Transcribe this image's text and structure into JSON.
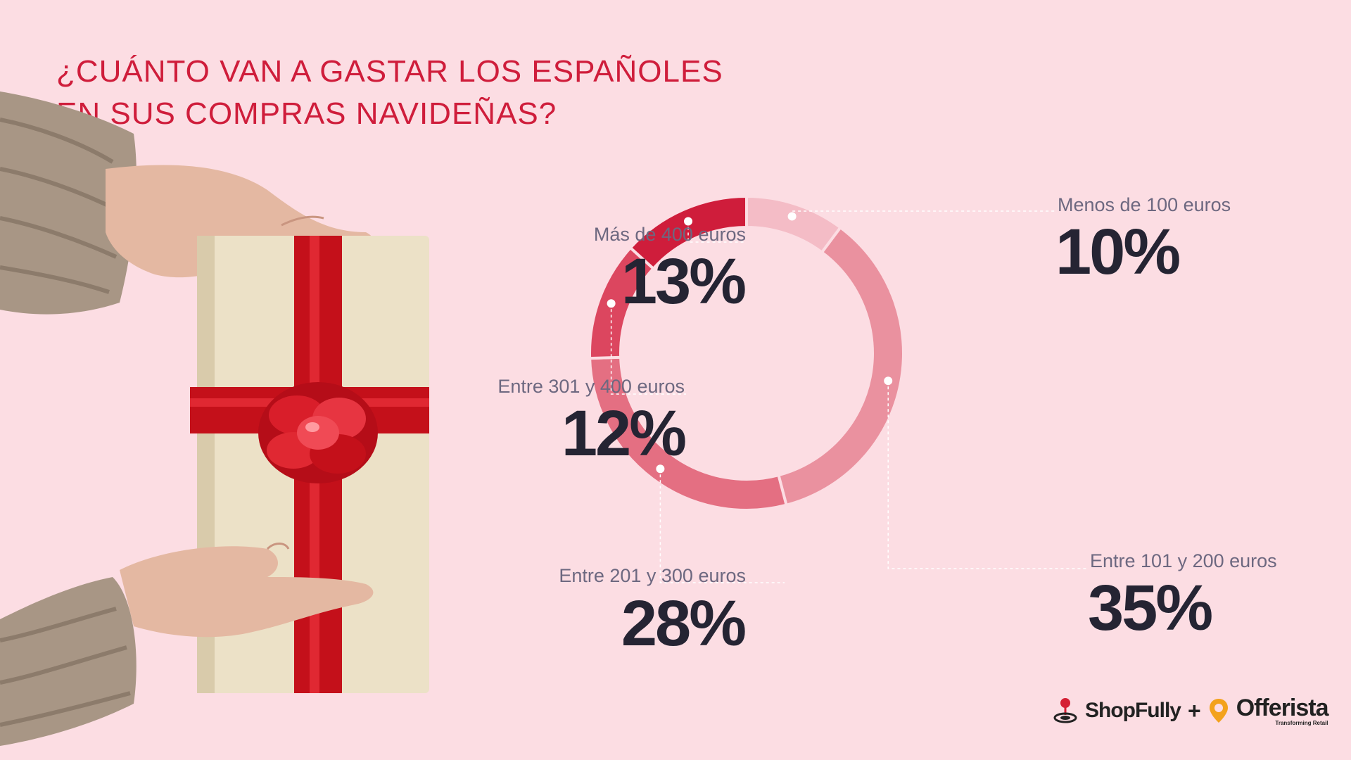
{
  "title": {
    "line1": "¿CUÁNTO VAN A GASTAR LOS ESPAÑOLES",
    "line2": "EN SUS COMPRAS NAVIDEÑAS?"
  },
  "chart_data": {
    "type": "pie",
    "title": "¿CUÁNTO VAN A GASTAR LOS ESPAÑOLES EN SUS COMPRAS NAVIDEÑAS?",
    "categories": [
      "Menos de 100 euros",
      "Entre 101 y 200 euros",
      "Entre 201 y 300 euros",
      "Entre 301 y 400 euros",
      "Más de 400 euros"
    ],
    "values": [
      10,
      35,
      28,
      12,
      13
    ],
    "value_labels": [
      "10%",
      "35%",
      "28%",
      "12%",
      "13%"
    ],
    "colors": [
      "#f4bcc6",
      "#ea919f",
      "#e46f82",
      "#dc465f",
      "#cf1d3b"
    ],
    "donut": true
  },
  "photo": {
    "icon": "gift-box-with-red-ribbon-held-by-hands"
  },
  "footer": {
    "brand1": "ShopFully",
    "plus": "+",
    "brand2": "Offerista",
    "tagline": "Transforming Retail",
    "brand1_icon": "shopfully-logo-icon",
    "brand2_icon": "offerista-pin-icon"
  },
  "colors": {
    "background": "#fcdde3",
    "title": "#cf1d3b",
    "label": "#6d6880",
    "value": "#252433",
    "leader": "#ffffff"
  }
}
